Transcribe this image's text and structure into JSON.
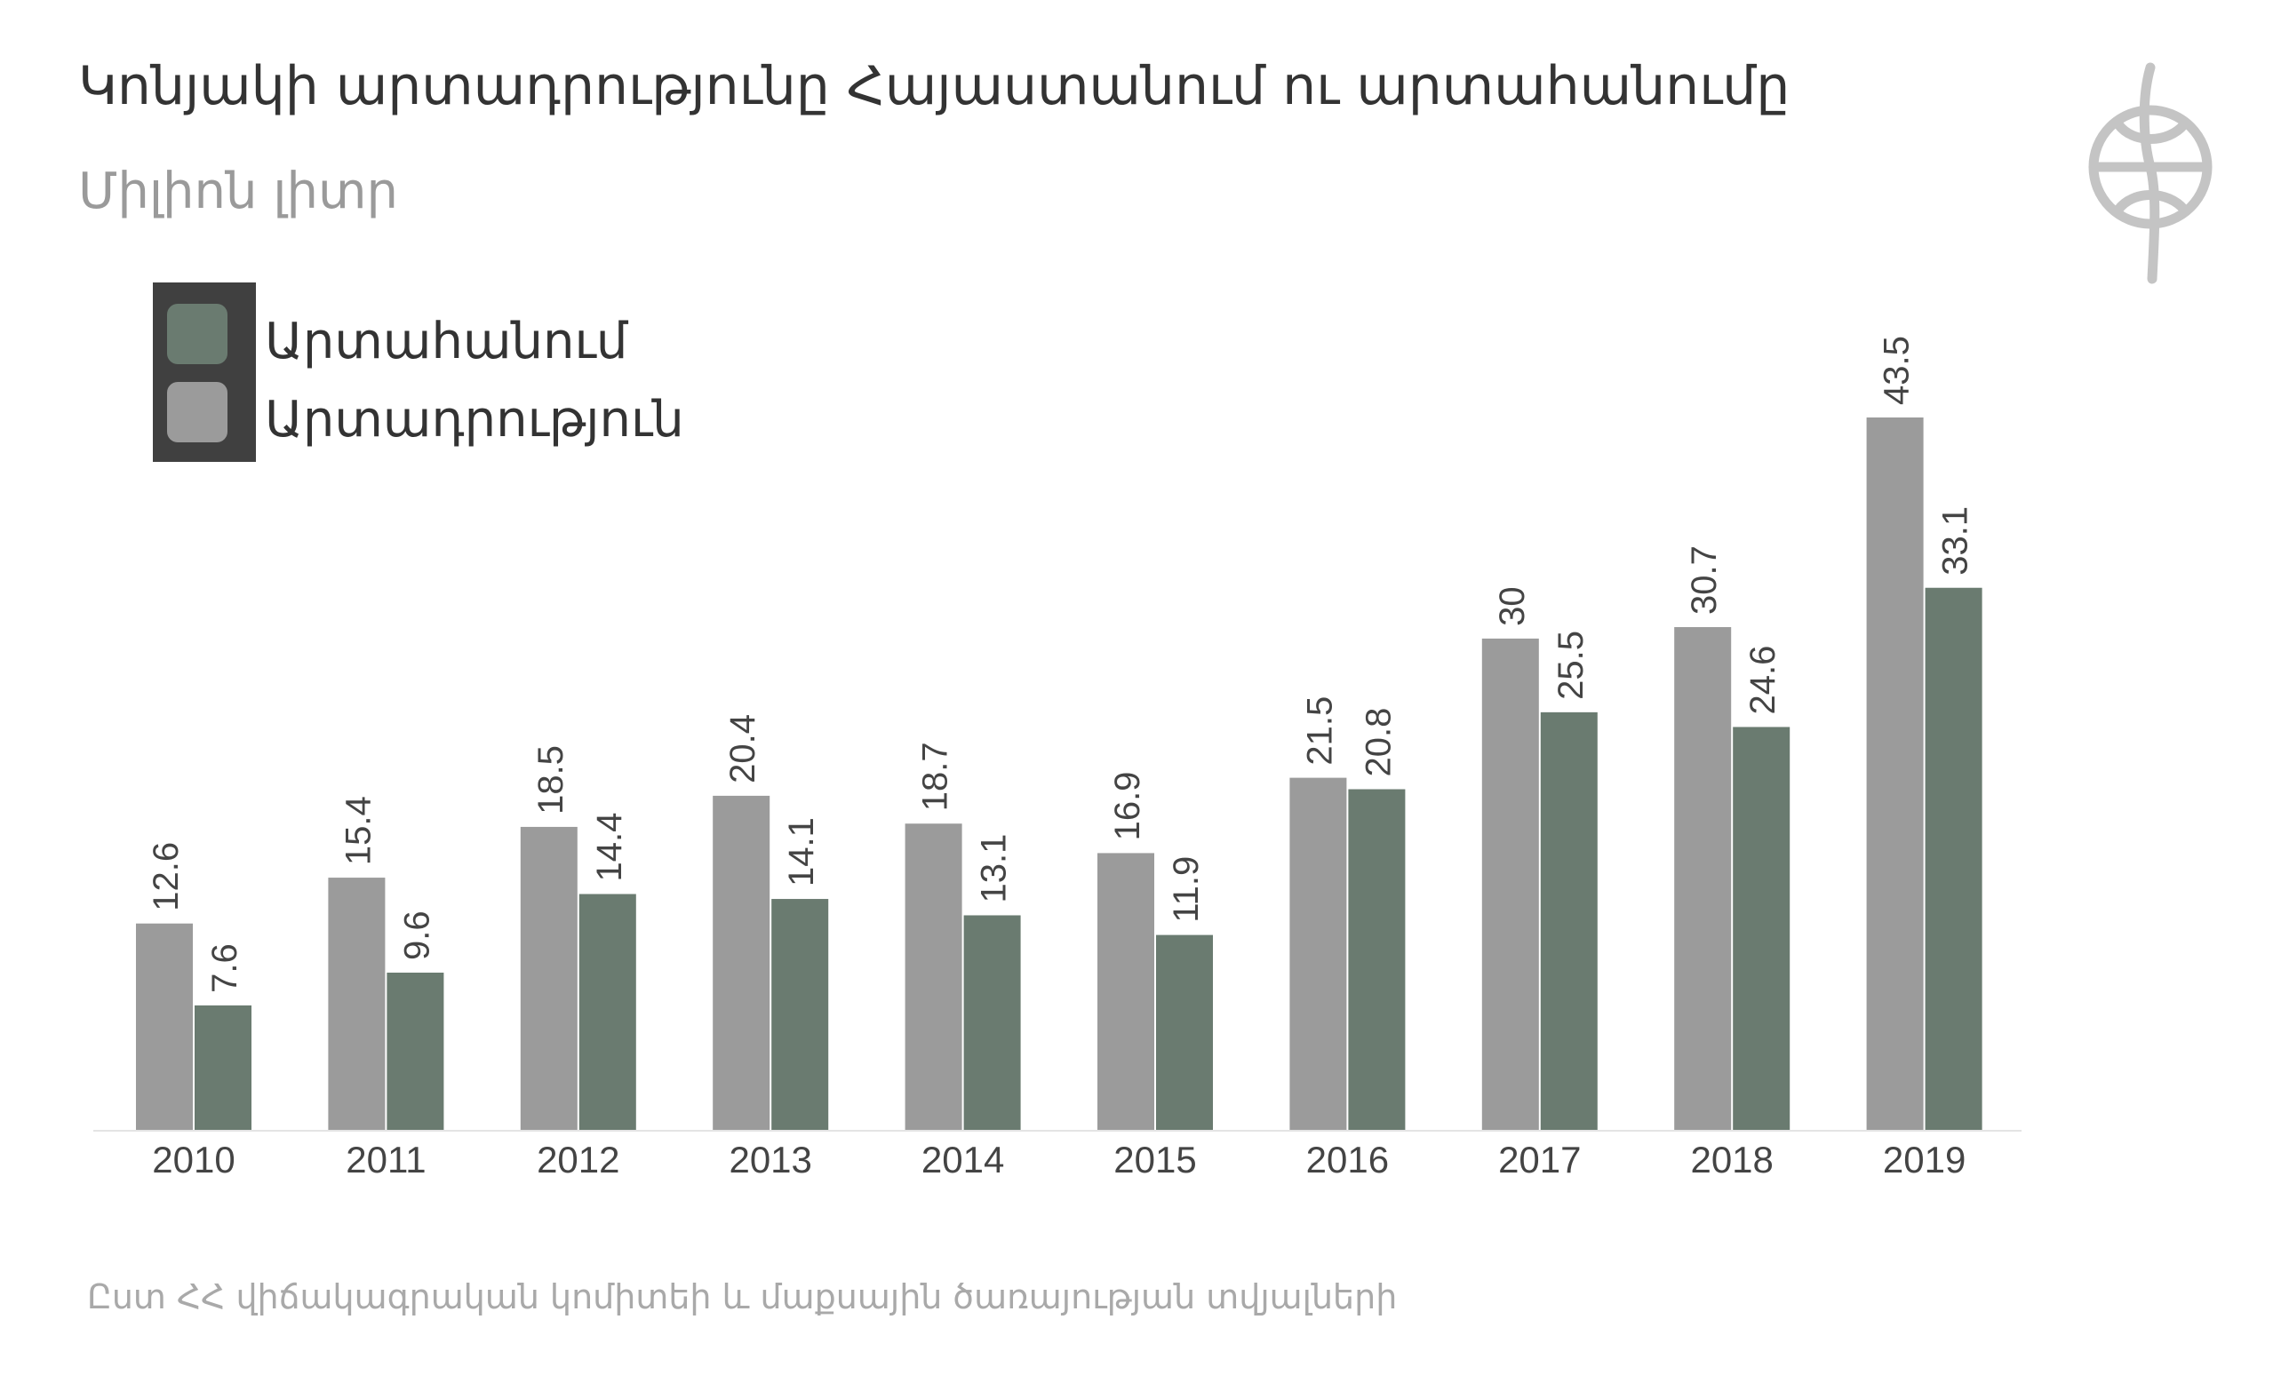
{
  "title": "Կոնյակի արտադրությունը Հայաստանում ու արտահանումը",
  "subtitle": "Միլիոն լիտր",
  "source": "Ըստ ՀՀ վիճակագրական կոմիտեի և մաքսային ծառայության տվյալների",
  "logo_icon": "logo-emblem-icon",
  "colors": {
    "production": "#9b9b9b",
    "export": "#6a7b70",
    "legend_bg": "#404040",
    "label_text": "#444444",
    "axis": "#e4e4e4"
  },
  "chart_data": {
    "type": "bar",
    "title": "Կոնյակի արտադրությունը Հայաստանում ու արտահանումը",
    "subtitle": "Միլիոն լիտր",
    "categories": [
      "2010",
      "2011",
      "2012",
      "2013",
      "2014",
      "2015",
      "2016",
      "2017",
      "2018",
      "2019"
    ],
    "series": [
      {
        "name": "Արտադրություն",
        "values": [
          12.6,
          15.4,
          18.5,
          20.4,
          18.7,
          16.9,
          21.5,
          30,
          30.7,
          43.5
        ]
      },
      {
        "name": "Արտահանում",
        "values": [
          7.6,
          9.6,
          14.4,
          14.1,
          13.1,
          11.9,
          20.8,
          25.5,
          24.6,
          33.1
        ]
      }
    ],
    "ylim": [
      0,
      43.5
    ],
    "grid": false,
    "legend_position": "top-left",
    "legend_order": [
      "Արտահանում",
      "Արտադրություն"
    ]
  }
}
